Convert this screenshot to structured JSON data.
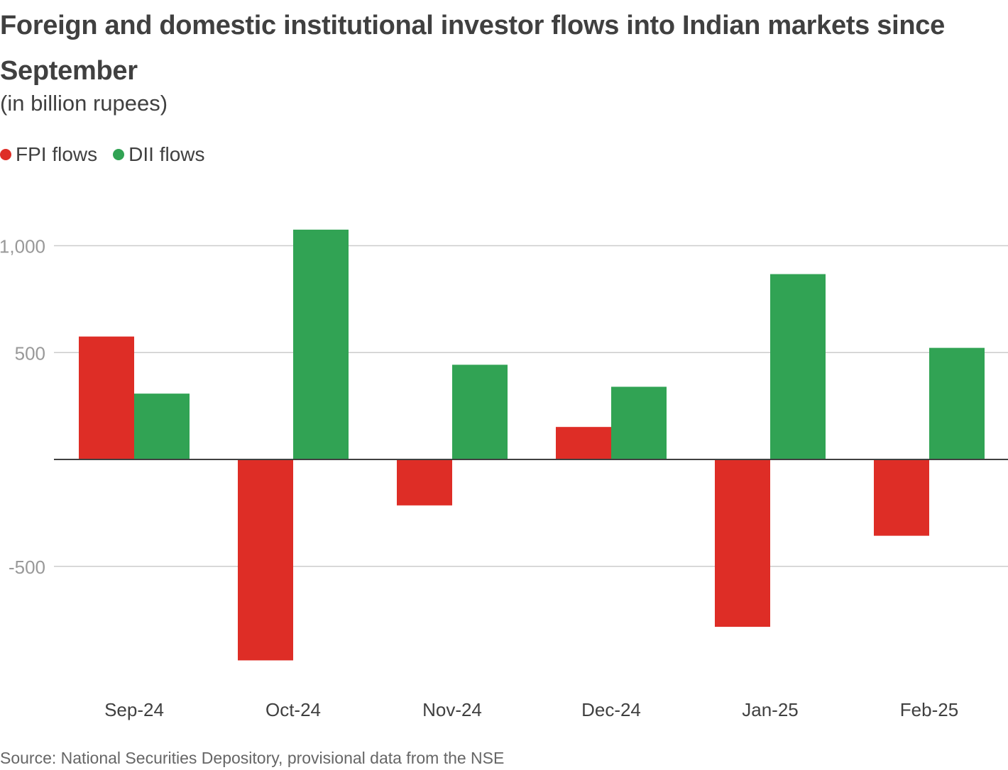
{
  "chart_data": {
    "type": "bar",
    "title": "Foreign and domestic institutional investor flows into Indian markets since September",
    "subtitle": "(in billion rupees)",
    "categories": [
      "Sep-24",
      "Oct-24",
      "Nov-24",
      "Dec-24",
      "Jan-25",
      "Feb-25"
    ],
    "series": [
      {
        "name": "FPI flows",
        "color": "#de2d26",
        "values": [
          575,
          -940,
          -215,
          152,
          -783,
          -357
        ]
      },
      {
        "name": "DII flows",
        "color": "#31a354",
        "values": [
          308,
          1075,
          443,
          340,
          867,
          522
        ]
      }
    ],
    "yticks": [
      1000,
      500,
      -500
    ],
    "ytick_labels": [
      "1,000",
      "500",
      "-500"
    ],
    "ylim": [
      -1150,
      1200
    ],
    "grid": true,
    "legend_position": "top-left",
    "xlabel": "",
    "ylabel": ""
  },
  "source": "Source: National Securities Depository, provisional data from the NSE"
}
